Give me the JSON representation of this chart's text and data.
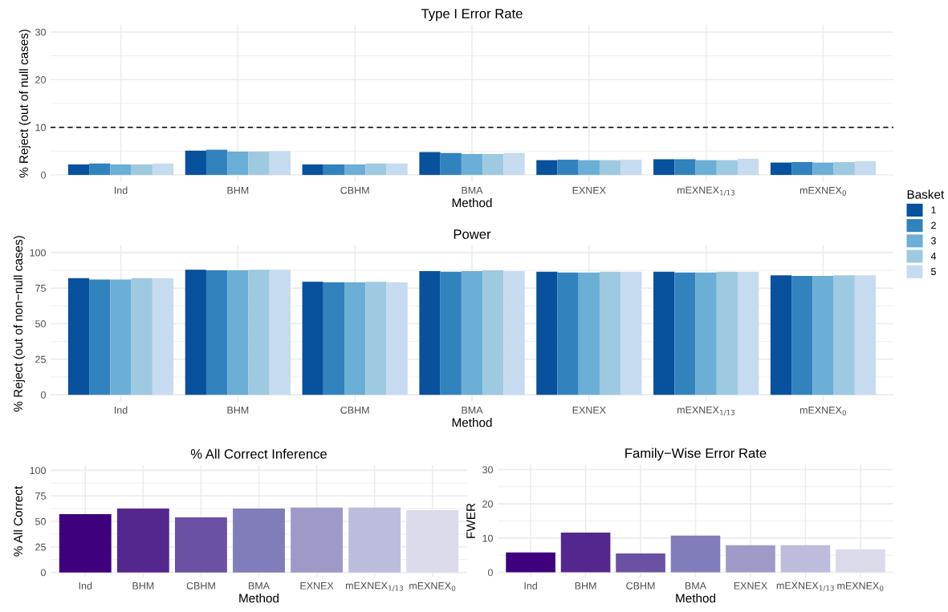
{
  "chart_data": [
    {
      "type": "bar",
      "title": "Type I Error Rate",
      "xlabel": "Method",
      "ylabel": "% Reject (out of null cases)",
      "categories": [
        "Ind",
        "BHM",
        "CBHM",
        "BMA",
        "EXNEX",
        "mEXNEX$_{1/13}$",
        "mEXNEX$_{0}$"
      ],
      "series": [
        {
          "name": "1",
          "color": "#08519c",
          "values": [
            2.2,
            5.1,
            2.2,
            4.8,
            3.1,
            3.3,
            2.6
          ]
        },
        {
          "name": "2",
          "color": "#3182bd",
          "values": [
            2.4,
            5.3,
            2.2,
            4.6,
            3.2,
            3.3,
            2.7
          ]
        },
        {
          "name": "3",
          "color": "#6baed6",
          "values": [
            2.2,
            4.9,
            2.2,
            4.4,
            3.1,
            3.1,
            2.6
          ]
        },
        {
          "name": "4",
          "color": "#9ecae1",
          "values": [
            2.2,
            4.9,
            2.4,
            4.4,
            3.1,
            3.1,
            2.7
          ]
        },
        {
          "name": "5",
          "color": "#c6dbef",
          "values": [
            2.4,
            5.0,
            2.4,
            4.6,
            3.2,
            3.4,
            2.9
          ]
        }
      ],
      "ylim": [
        -1.5,
        31.5
      ],
      "yticks": [
        0,
        10,
        20,
        30
      ],
      "ref_lines": [
        {
          "axis": "y",
          "value": 10,
          "color": "#000000",
          "line_style": "dashed"
        }
      ],
      "grid": true,
      "legend": "right",
      "legend_title": "Basket"
    },
    {
      "type": "bar",
      "title": "Power",
      "xlabel": "Method",
      "ylabel": "% Reject (out of non−null cases)",
      "categories": [
        "Ind",
        "BHM",
        "CBHM",
        "BMA",
        "EXNEX",
        "mEXNEX$_{1/13}$",
        "mEXNEX$_{0}$"
      ],
      "series": [
        {
          "color": "#08519c",
          "values": [
            82,
            88,
            79.5,
            87,
            86.5,
            86.5,
            84
          ]
        },
        {
          "color": "#3182bd",
          "values": [
            81,
            87.5,
            79,
            86.5,
            86,
            86,
            83.5
          ]
        },
        {
          "color": "#6baed6",
          "values": [
            81,
            87.5,
            79,
            87,
            86,
            86,
            83.5
          ]
        },
        {
          "color": "#9ecae1",
          "values": [
            82,
            88,
            79.5,
            87.5,
            86.5,
            86.5,
            84
          ]
        },
        {
          "color": "#c6dbef",
          "values": [
            82,
            88,
            79,
            87,
            86.5,
            86.5,
            84
          ]
        }
      ],
      "ylim": [
        -5,
        105
      ],
      "yticks": [
        0,
        25,
        50,
        75,
        100
      ],
      "grid": true
    },
    {
      "type": "bar",
      "title": "% All Correct Inference",
      "xlabel": "Method",
      "ylabel": "% All Correct",
      "categories": [
        "Ind",
        "BHM",
        "CBHM",
        "BMA",
        "EXNEX",
        "mEXNEX$_{1/13}$",
        "mEXNEX$_{0}$"
      ],
      "values": [
        57,
        62.5,
        54,
        62.5,
        63.5,
        63.5,
        61
      ],
      "colors": [
        "#3f007d",
        "#54278f",
        "#6a51a3",
        "#807dba",
        "#9e9ac8",
        "#bcbddc",
        "#dadaeb"
      ],
      "ylim": [
        -5,
        105
      ],
      "yticks": [
        0,
        25,
        50,
        75,
        100
      ],
      "grid": true
    },
    {
      "type": "bar",
      "title": "Family−Wise Error Rate",
      "xlabel": "Method",
      "ylabel": "FWER",
      "categories": [
        "Ind",
        "BHM",
        "CBHM",
        "BMA",
        "EXNEX",
        "mEXNEX$_{1/13}$",
        "mEXNEX$_{0}$"
      ],
      "values": [
        5.8,
        11.6,
        5.5,
        10.7,
        7.9,
        7.9,
        6.7
      ],
      "colors": [
        "#3f007d",
        "#54278f",
        "#6a51a3",
        "#807dba",
        "#9e9ac8",
        "#bcbddc",
        "#dadaeb"
      ],
      "ylim": [
        -1.5,
        31.5
      ],
      "yticks": [
        0,
        10,
        20,
        30
      ],
      "grid": true
    }
  ]
}
